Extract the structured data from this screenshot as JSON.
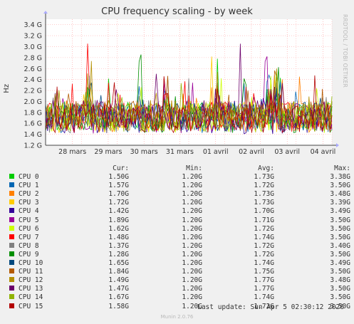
{
  "title": "CPU frequency scaling - by week",
  "side_text": "RRDTOOL / TOBI OETIKER",
  "ylabel": "Hz",
  "headers": {
    "cur": "Cur:",
    "min": "Min:",
    "avg": "Avg:",
    "max": "Max:"
  },
  "last_update": "Last update: Sun Apr  5 02:30:12 2026",
  "footer": "Munin 2.0.76",
  "chart_data": {
    "type": "line",
    "title": "CPU frequency scaling - by week",
    "ylabel": "Hz",
    "ylim": [
      1.2,
      3.5
    ],
    "yticks": [
      "1.2 G",
      "1.4 G",
      "1.6 G",
      "1.8 G",
      "2.0 G",
      "2.2 G",
      "2.4 G",
      "2.6 G",
      "2.8 G",
      "3.0 G",
      "3.2 G",
      "3.4 G"
    ],
    "xticks": [
      "28 mars",
      "29 mars",
      "30 mars",
      "31 mars",
      "01 avril",
      "02 avril",
      "03 avril",
      "04 avril"
    ],
    "grid": true,
    "series": [
      {
        "name": "CPU 0",
        "color": "#00cc00",
        "cur": "1.50G",
        "min": "1.20G",
        "avg": "1.73G",
        "max": "3.38G"
      },
      {
        "name": "CPU 1",
        "color": "#0066b3",
        "cur": "1.57G",
        "min": "1.20G",
        "avg": "1.72G",
        "max": "3.50G"
      },
      {
        "name": "CPU 2",
        "color": "#ff8000",
        "cur": "1.70G",
        "min": "1.20G",
        "avg": "1.73G",
        "max": "3.48G"
      },
      {
        "name": "CPU 3",
        "color": "#ffcc00",
        "cur": "1.72G",
        "min": "1.20G",
        "avg": "1.73G",
        "max": "3.39G"
      },
      {
        "name": "CPU 4",
        "color": "#330099",
        "cur": "1.42G",
        "min": "1.20G",
        "avg": "1.70G",
        "max": "3.49G"
      },
      {
        "name": "CPU 5",
        "color": "#990099",
        "cur": "1.89G",
        "min": "1.20G",
        "avg": "1.71G",
        "max": "3.50G"
      },
      {
        "name": "CPU 6",
        "color": "#ccff00",
        "cur": "1.62G",
        "min": "1.20G",
        "avg": "1.72G",
        "max": "3.50G"
      },
      {
        "name": "CPU 7",
        "color": "#ff0000",
        "cur": "1.48G",
        "min": "1.20G",
        "avg": "1.74G",
        "max": "3.50G"
      },
      {
        "name": "CPU 8",
        "color": "#808080",
        "cur": "1.37G",
        "min": "1.20G",
        "avg": "1.72G",
        "max": "3.40G"
      },
      {
        "name": "CPU 9",
        "color": "#008f00",
        "cur": "1.28G",
        "min": "1.20G",
        "avg": "1.72G",
        "max": "3.50G"
      },
      {
        "name": "CPU 10",
        "color": "#00487d",
        "cur": "1.65G",
        "min": "1.20G",
        "avg": "1.74G",
        "max": "3.49G"
      },
      {
        "name": "CPU 11",
        "color": "#b35a00",
        "cur": "1.84G",
        "min": "1.20G",
        "avg": "1.75G",
        "max": "3.50G"
      },
      {
        "name": "CPU 12",
        "color": "#b38f00",
        "cur": "1.49G",
        "min": "1.20G",
        "avg": "1.77G",
        "max": "3.48G"
      },
      {
        "name": "CPU 13",
        "color": "#6b006b",
        "cur": "1.47G",
        "min": "1.20G",
        "avg": "1.77G",
        "max": "3.50G"
      },
      {
        "name": "CPU 14",
        "color": "#8fb300",
        "cur": "1.67G",
        "min": "1.20G",
        "avg": "1.74G",
        "max": "3.50G"
      },
      {
        "name": "CPU 15",
        "color": "#b30000",
        "cur": "1.58G",
        "min": "1.20G",
        "avg": "1.72G",
        "max": "3.50G"
      }
    ]
  }
}
